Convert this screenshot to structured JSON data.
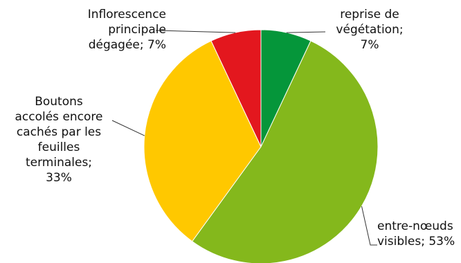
{
  "chart_data": {
    "type": "pie",
    "start_angle_deg": 0,
    "direction": "clockwise",
    "slices": [
      {
        "label": "reprise de\nvégétation;\n7%",
        "value": 7,
        "color": "#05963A"
      },
      {
        "label": "entre-nœuds\nvisibles; 53%",
        "value": 53,
        "color": "#84B81C"
      },
      {
        "label": "Boutons\naccolés encore\ncachés par les\nfeuilles\nterminales;\n33%",
        "value": 33,
        "color": "#FFC800"
      },
      {
        "label": "Inflorescence\nprincipale\ndégagée; 7%",
        "value": 7,
        "color": "#E3171E"
      }
    ]
  }
}
